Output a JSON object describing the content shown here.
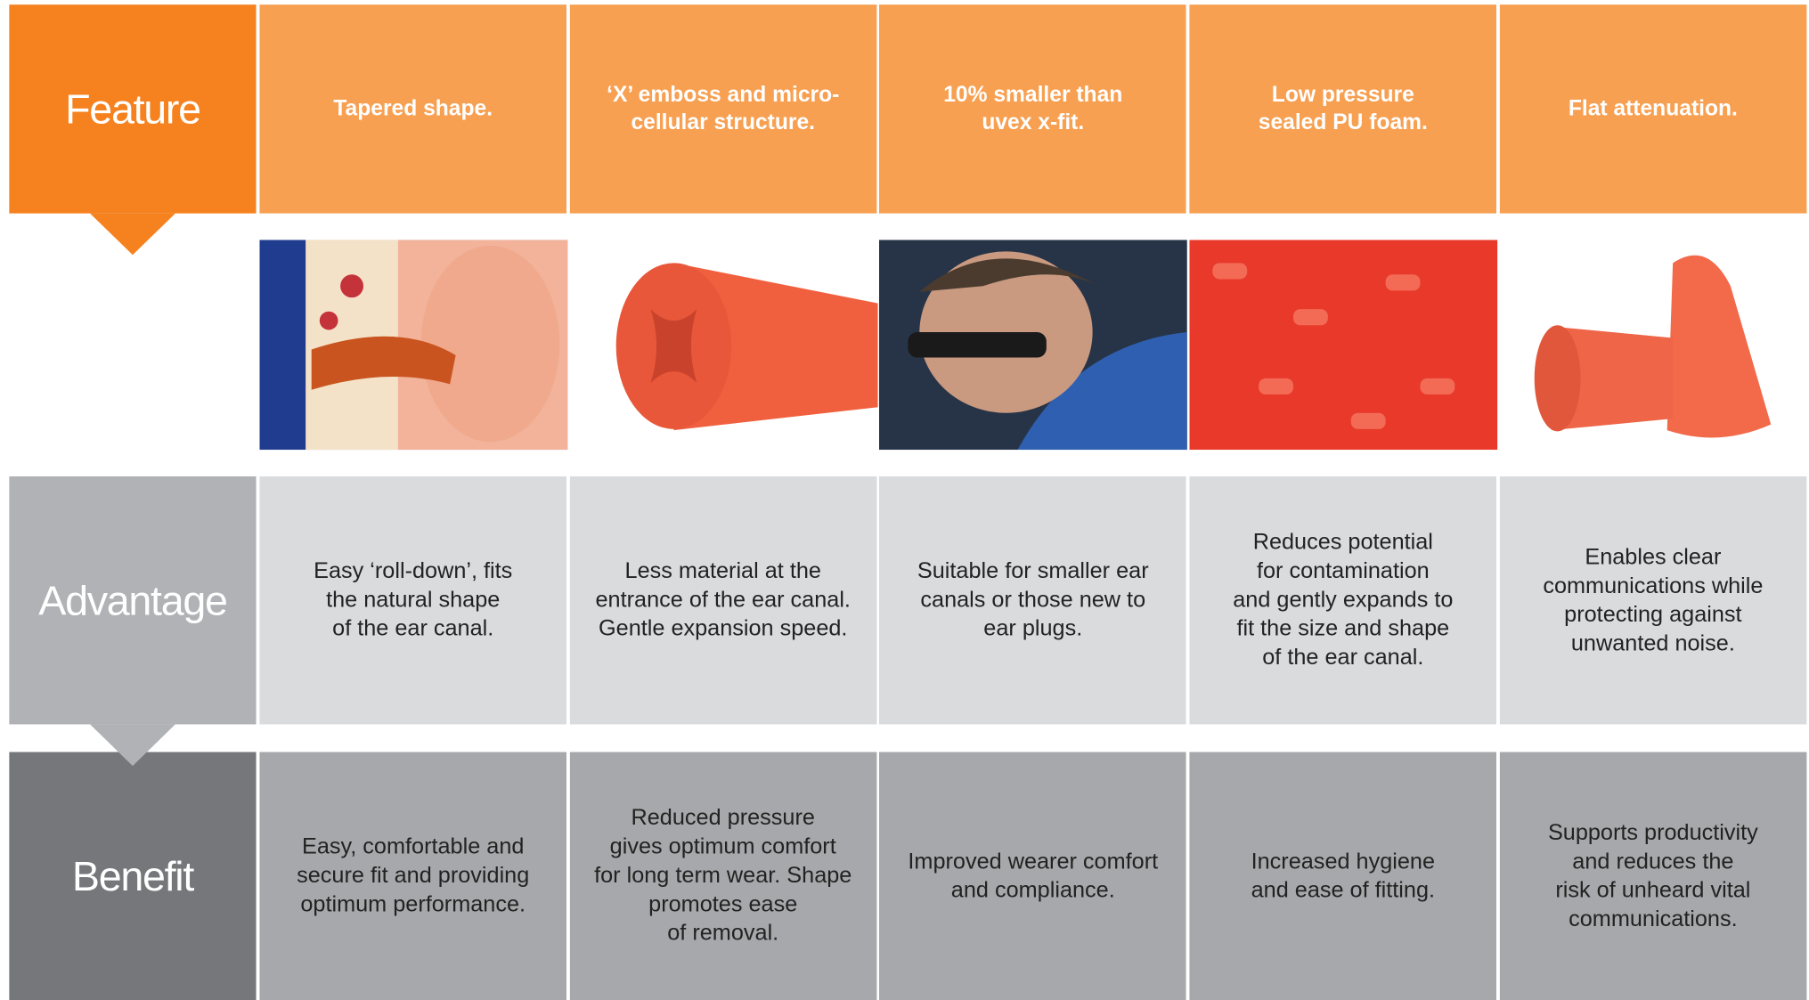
{
  "rows": {
    "feature": "Feature",
    "advantage": "Advantage",
    "benefit": "Benefit"
  },
  "columns": [
    {
      "feature": "Tapered shape.",
      "advantage": "Easy ‘roll-down’, fits\nthe natural shape\nof the ear canal.",
      "benefit": "Easy, comfortable and\nsecure fit and providing\noptimum performance."
    },
    {
      "feature": "‘X’ emboss and micro-\ncellular structure.",
      "advantage": "Less material at the\nentrance of the ear canal.\nGentle expansion speed.",
      "benefit": "Reduced pressure\ngives optimum comfort\nfor long term wear. Shape\npromotes ease\nof  removal."
    },
    {
      "feature": "10% smaller than\nuvex x-fit.",
      "advantage": "Suitable for smaller ear\ncanals or those new to\near plugs.",
      "benefit": "Improved wearer comfort\nand compliance."
    },
    {
      "feature": "Low pressure\nsealed PU foam.",
      "advantage": "Reduces potential\nfor contamination\nand gently expands to\nfit the size and shape\nof the ear canal.",
      "benefit": "Increased hygiene\nand ease of fitting."
    },
    {
      "feature": "Flat attenuation.",
      "advantage": "Enables clear\ncommunications while\nprotecting against\nunwanted noise.",
      "benefit": "Supports productivity\nand reduces the\nrisk of unheard vital\ncommunications."
    }
  ]
}
